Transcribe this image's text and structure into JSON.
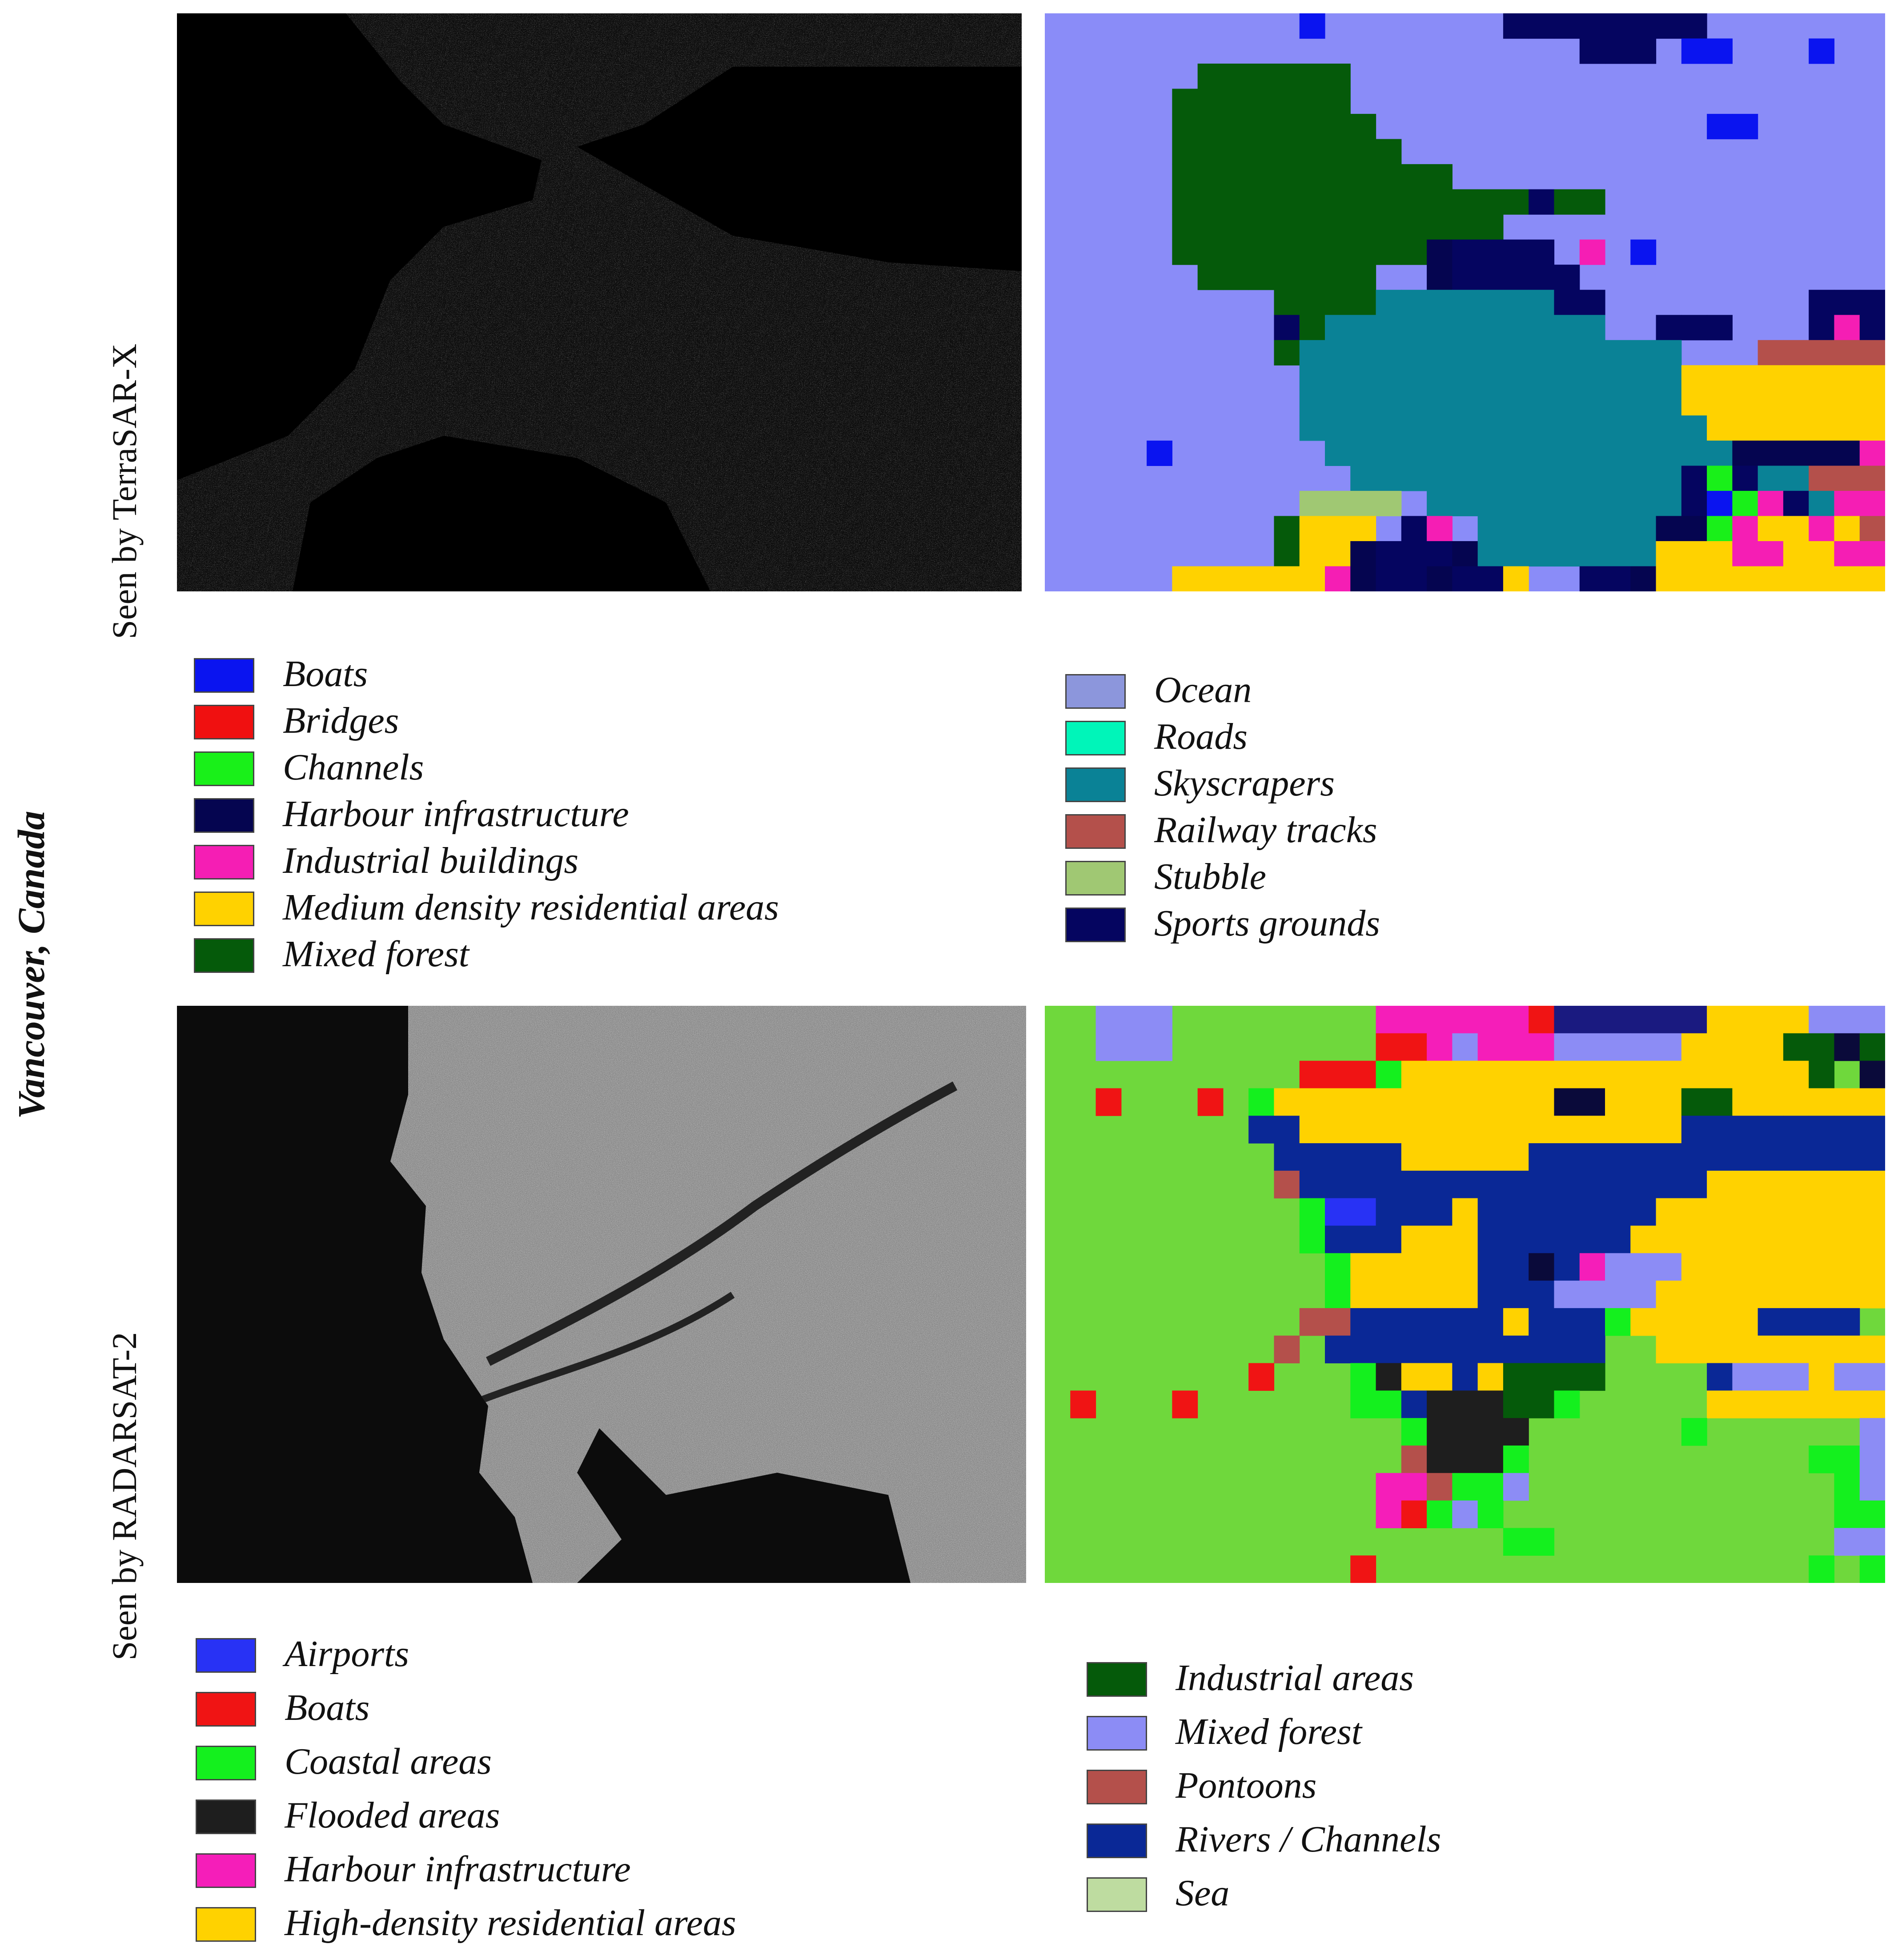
{
  "labels": {
    "city": "Vancouver, Canada",
    "top_sensor": "Seen by TerraSAR-X",
    "bottom_sensor": "Seen by RADARSAT-2"
  },
  "terrasar_legend_left": [
    {
      "label": "Boats",
      "color": "#0a14f0"
    },
    {
      "label": "Bridges",
      "color": "#f01010"
    },
    {
      "label": "Channels",
      "color": "#19f019"
    },
    {
      "label": "Harbour infrastructure",
      "color": "#050550"
    },
    {
      "label": "Industrial buildings",
      "color": "#f51eb4"
    },
    {
      "label": "Medium density residential areas",
      "color": "#ffd200"
    },
    {
      "label": "Mixed forest",
      "color": "#055a0a"
    }
  ],
  "terrasar_legend_right": [
    {
      "label": "Ocean",
      "color": "#8c96dc"
    },
    {
      "label": "Roads",
      "color": "#00f5b9"
    },
    {
      "label": "Skyscrapers",
      "color": "#0a8296"
    },
    {
      "label": "Railway tracks",
      "color": "#b4504b"
    },
    {
      "label": "Stubble",
      "color": "#a0c873"
    },
    {
      "label": "Sports grounds",
      "color": "#050560"
    }
  ],
  "radarsat_legend_left": [
    {
      "label": "Airports",
      "color": "#2832f5"
    },
    {
      "label": "Boats",
      "color": "#f01414"
    },
    {
      "label": "Coastal areas",
      "color": "#14f01e"
    },
    {
      "label": "Flooded areas",
      "color": "#1e1e1e"
    },
    {
      "label": "Harbour infrastructure",
      "color": "#f51eb9"
    },
    {
      "label": "High-density residential areas",
      "color": "#ffd200"
    }
  ],
  "radarsat_legend_right": [
    {
      "label": "Industrial areas",
      "color": "#055a0a"
    },
    {
      "label": "Mixed forest",
      "color": "#8c8cf5"
    },
    {
      "label": "Pontoons",
      "color": "#b4504b"
    },
    {
      "label": "Rivers / Channels",
      "color": "#0a2896"
    },
    {
      "label": "Sea",
      "color": "#bedca0"
    }
  ],
  "class_maps": {
    "terrasar": {
      "base": "#8a8cf8",
      "grid": [
        "OOOOOOOOOOBOOOOOOOHHHHHHHHOOOOOOO",
        "OOOOOOOOOOOOOOOOOOOOOHHHOBBOOOBOO",
        "OOOOOOFFFFFFOOOOOOOOOOOOOOOOOOOOO",
        "OOOOOFFFFFFFOOOOOOOOOOOOOOOOOOOOO",
        "OOOOOFFFFFFFFOOOOOOOOOOOOOBBOOOOO",
        "OOOOOFFFFFFFFFOOOOOOOOOOOOOOOOOOO",
        "OOOOOFFFFFFFFFFFOOOOOOOOOOOOOOOOO",
        "OOOOOFFFFFFFFFFFFFFHFFOOOOOOOOOOO",
        "OOOOOFFFFFFFFFFFFFOOOOOOOOOOOOOOO",
        "OOOOOFFFFFFFFFFRHHHHOIOBOOOOOOOOO",
        "OOOOOOFFFFFFFOORHHHHHOOOOOOOOOOOO",
        "OOOOOOOOOFFFFSSSSSSSHHOOOOOOOOHHHHHO",
        "OOOOOOOOOHFSSSSSSSSSSSOOHHHOOOHIHIH",
        "OOOOOOOOOFSSSSSSSSSSSSSSSOOOTTTTTTT",
        "OOOOOOOOOOSSSSSSSSSSSSSSSMMMMMMMM",
        "OOOOOOOOOOSSSSSSSSSSSSSSSMMMMMMMM",
        "OOOOOOOOOOSSSSSSSSSSSSSSSSMMMMMMM",
        "OOOOBOOOOOOSSSSSSSSSSSSSSSSRRRRRI",
        "OOOOOOOOOOOOSSSSSSSSSSSSSHCHSSTTT",
        "OOOOOOOOOOKKKKOSSSSSSSSSSHBCIHSII",
        "OOOOOOOOOFMMMOHIOSSSSSSSRRCIMMIMT",
        "OOOOOOOOOFMMRHHHRSSSSSSSMMMIIMMIIM",
        "OOOOOMMMMMMIRHHRHHMOOHHRMMMMMMMMM"
      ]
    },
    "radarsat": {
      "base": "#6fd83c",
      "grid": [
        "GGFFFGGGGGGGGIIIIIIBRRRRRRMMMMFFFFFFF",
        "GGFFFGGGGGGGGBBIFIIIFFFFFMMMMKKHKGFF",
        "GGGGGGGGGGBBBCMMMMMMMMMMMMMMMMKGH",
        "GGBGGGBGCMMMMMMMMMMMHHMMMKKMMMMMM",
        "GGGGGGGGWWMMMMMMMMMMMMMMMWWWWWWWW",
        "GGGGGGGGGWWWWWMMMMMWWWWWWWWWWWWWW",
        "GGGGGGGGGPWWWWWWWWWWWWWWWWMMMMMMM",
        "GGGGGGGGGGCAAWWWMWWWWWWWMMMMMMMMM",
        "GGGGGGGGGGCWWWMMMWWWWWWMMMMMMMMMM",
        "GGGGGGGGGGGCMMMMMWWHWIFFFMMMMMMMMM",
        "GGGGGGGGGGGCMMMMMWWWFFFFMMMMMMMMMM",
        "GGGGGGGGGGPPWWWWWWMWWWCMMMMMWWWW",
        "GGGGGGGGGPGWWWWWWWWWWWGGMMMMMMMMM",
        "GGGGGGGGBGGGCNMMWMKKKKGGGGWFFFMFFM",
        "GBGGGBGGGGGGCCWNNNKKCGGGGGMMMMMMMM",
        "GGGGGGGGGGGGGGCNNNNGGGGGGCGGGGGGFF",
        "GGGGGGGGGGGGGGPNNNCGGGGGGGGGGGCCFF",
        "GGGGGGGGGGGGGIIPCCFGGGGGGGGGGGGCFMF",
        "GGGGGGGGGGGGGIBCFCGGGGGGGGGGGGGCCFF",
        "GGGGGGGGGGGGGGGGGGCCGGGGGGGGGGGFFFF",
        "GGGGGGGGGGGGBGGGGGGGGGGGGGGGGGCGCCF"
      ]
    }
  }
}
